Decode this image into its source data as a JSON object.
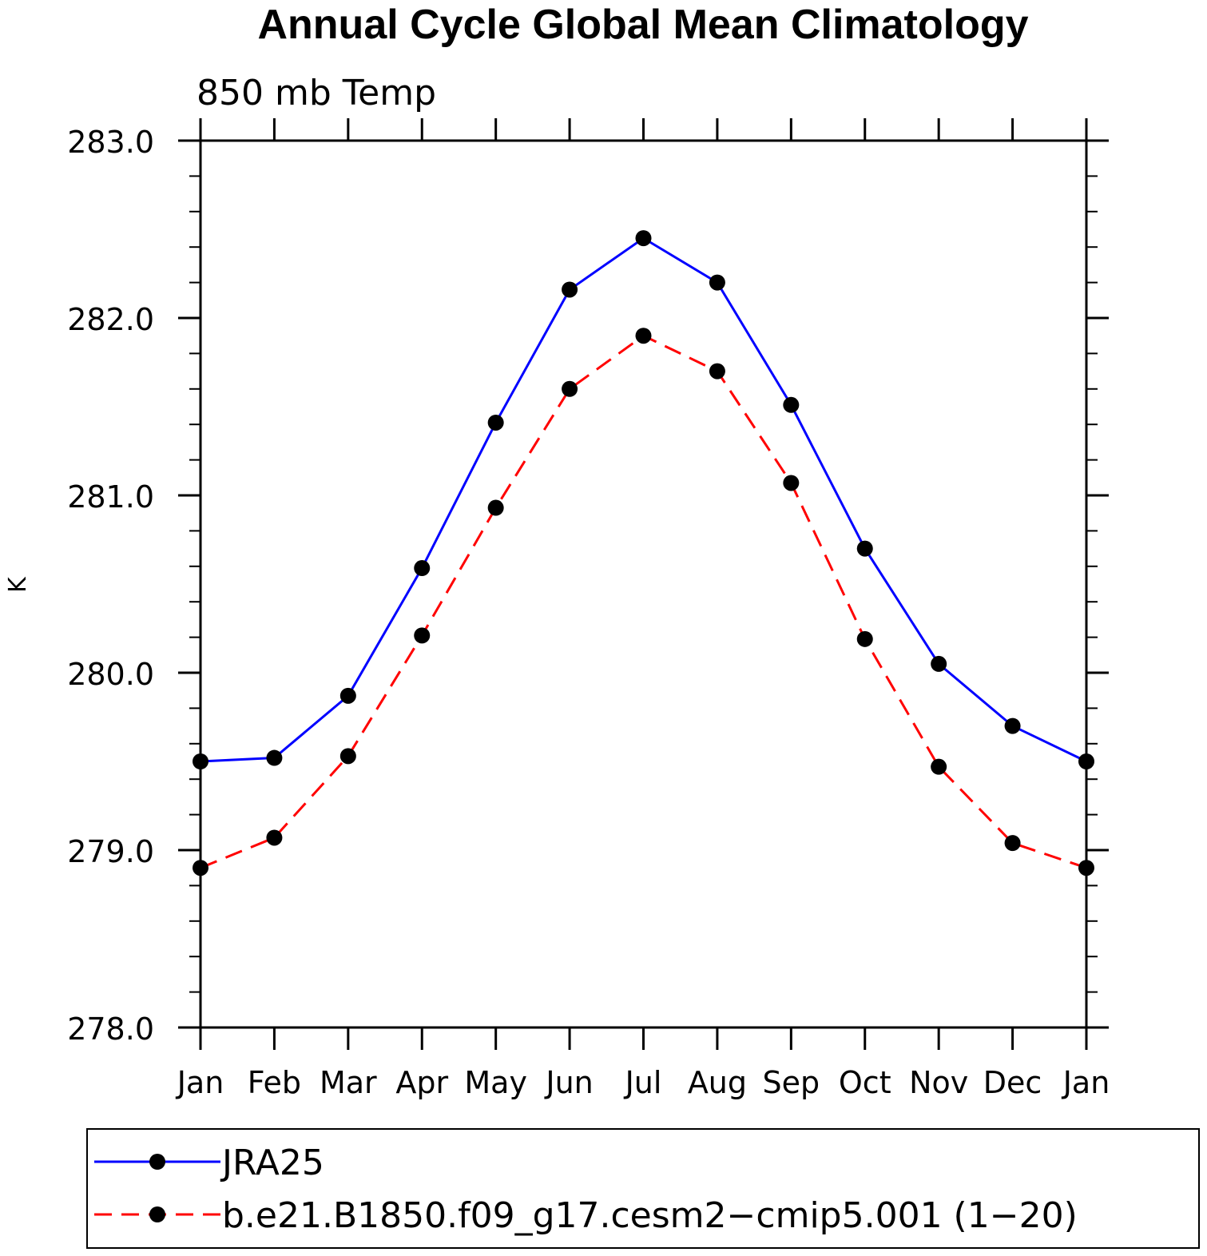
{
  "chart_data": {
    "type": "line",
    "title": "Annual Cycle Global Mean Climatology",
    "subtitle": "850 mb Temp",
    "xlabel": "",
    "ylabel": "K",
    "categories": [
      "Jan",
      "Feb",
      "Mar",
      "Apr",
      "May",
      "Jun",
      "Jul",
      "Aug",
      "Sep",
      "Oct",
      "Nov",
      "Dec",
      "Jan"
    ],
    "ylim": [
      278.0,
      283.0
    ],
    "yticks": [
      "278.0",
      "279.0",
      "280.0",
      "281.0",
      "282.0",
      "283.0"
    ],
    "series": [
      {
        "name": "JRA25",
        "color": "#0000ff",
        "style": "solid",
        "values": [
          279.5,
          279.52,
          279.87,
          280.59,
          281.41,
          282.16,
          282.45,
          282.2,
          281.51,
          280.7,
          280.05,
          279.7,
          279.5
        ]
      },
      {
        "name": "b.e21.B1850.f09_g17.cesm2−cmip5.001 (1−20)",
        "color": "#ff0000",
        "style": "dashed",
        "values": [
          278.9,
          279.07,
          279.53,
          280.21,
          280.93,
          281.6,
          281.9,
          281.7,
          281.07,
          280.19,
          279.47,
          279.04,
          278.9
        ]
      }
    ],
    "legend_position": "bottom",
    "grid": false
  }
}
